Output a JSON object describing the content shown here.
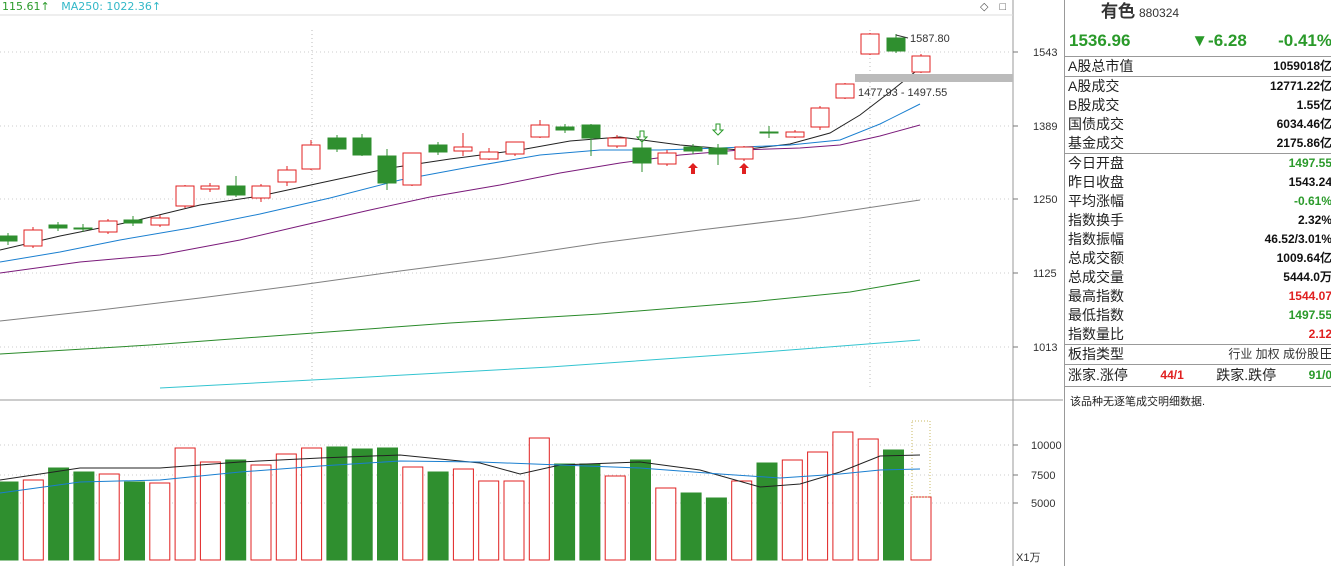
{
  "legend": {
    "ma_value": "115.61↑",
    "ma250": "MA250: 1022.36↑"
  },
  "price_axis": {
    "ticks": [
      "1543",
      "1389",
      "1250",
      "1125",
      "1013"
    ]
  },
  "volume_axis": {
    "ticks": [
      "10000",
      "7500",
      "5000"
    ],
    "unit": "X1万"
  },
  "annotations": {
    "high_label": "1587.80",
    "range_label": "1477.93 - 1497.55"
  },
  "colors": {
    "up": "#e02020",
    "down": "#2f8f2f",
    "ma1": "#222222",
    "ma2": "#1a7fd0",
    "ma3": "#7a1a7a",
    "ma4": "#808080",
    "ma5": "#2a8a2a",
    "ma6": "#33c4d0"
  },
  "sidebar": {
    "name": "有色",
    "code": "880324",
    "price": "1536.96",
    "change": "▼-6.28",
    "change_pct": "-0.41%",
    "group1": [
      {
        "label": "A股总市值",
        "value": "1059018亿",
        "color": "blk"
      }
    ],
    "group2": [
      {
        "label": "A股成交",
        "value": "12771.22亿",
        "color": "blk"
      },
      {
        "label": "B股成交",
        "value": "1.55亿",
        "color": "blk"
      },
      {
        "label": "国债成交",
        "value": "6034.46亿",
        "color": "blk"
      },
      {
        "label": "基金成交",
        "value": "2175.86亿",
        "color": "blk"
      }
    ],
    "group3": [
      {
        "label": "今日开盘",
        "value": "1497.55",
        "color": "green"
      },
      {
        "label": "昨日收盘",
        "value": "1543.24",
        "color": "blk"
      },
      {
        "label": "平均涨幅",
        "value": "-0.61%",
        "color": "green"
      },
      {
        "label": "指数换手",
        "value": "2.32%",
        "color": "blk"
      },
      {
        "label": "指数振幅",
        "value": "46.52/3.01%",
        "color": "blk"
      },
      {
        "label": "总成交额",
        "value": "1009.64亿",
        "color": "blk"
      },
      {
        "label": "总成交量",
        "value": "5444.0万",
        "color": "blk"
      },
      {
        "label": "最高指数",
        "value": "1544.07",
        "color": "red"
      },
      {
        "label": "最低指数",
        "value": "1497.55",
        "color": "green"
      },
      {
        "label": "指数量比",
        "value": "2.12",
        "color": "red"
      }
    ],
    "type_label": "板指类型",
    "type_value": "行业 加权 成份股",
    "type_icon": "grid-icon",
    "updown_label1": "涨家.涨停",
    "updown_value1": "44/1",
    "updown_label2": "跌家.跌停",
    "updown_value2": "91/0",
    "note": "该品种无逐笔成交明细数据."
  }
}
